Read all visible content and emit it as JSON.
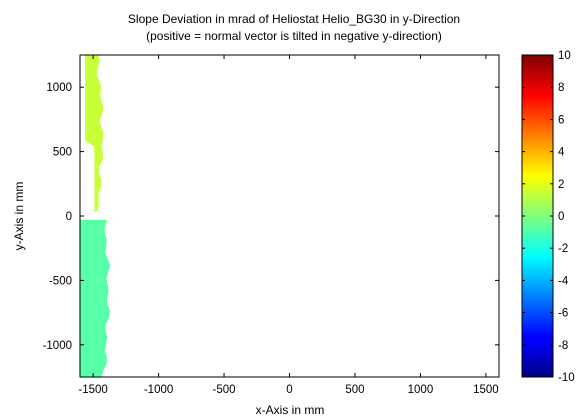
{
  "chart_data": [
    {
      "type": "heatmap",
      "title": "Slope Deviation in mrad of Heliostat Helio_BG30 in y-Direction",
      "subtitle": "(positive = normal vector is tilted in negative y-direction)",
      "xlabel": "x-Axis in mm",
      "ylabel": "y-Axis in mm",
      "xlim": [
        -1600,
        1600
      ],
      "ylim": [
        -1250,
        1250
      ],
      "xticks": [
        -1500,
        -1000,
        -500,
        0,
        500,
        1000,
        1500
      ],
      "yticks": [
        -1000,
        -500,
        0,
        500,
        1000
      ],
      "grid": false,
      "colormap": "jet",
      "colorbar": {
        "position": "right",
        "range": [
          -10,
          10
        ],
        "ticks": [
          -10,
          -8,
          -6,
          -4,
          -2,
          0,
          2,
          4,
          6,
          8,
          10
        ]
      },
      "facets": [
        {
          "name": "upper",
          "y_range": [
            30,
            1250
          ],
          "value": 1.4
        },
        {
          "name": "lower",
          "y_range": [
            -1250,
            -30
          ],
          "value": -0.8
        }
      ]
    }
  ]
}
